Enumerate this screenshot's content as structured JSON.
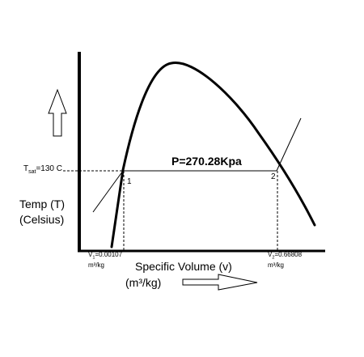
{
  "diagram": {
    "title": "",
    "tsat_prefix": "T",
    "tsat_sub": "sat",
    "tsat_value": "=130 C",
    "pressure_label": "P=270.28Kpa",
    "point1_label": "1",
    "point2_label": "2",
    "y_axis_label_line1": "Temp (T)",
    "y_axis_label_line2": "(Celsius)",
    "v1_prefix": "V",
    "v1_sub": "1",
    "v1_value": "=0.00107",
    "v1_unit": "m³/kg",
    "v2_prefix": "V",
    "v2_sub": "2",
    "v2_value": "=0.66808",
    "v2_unit": "m³/kg",
    "x_axis_label_line1": "Specific Volume (v)",
    "x_axis_label_line2": "(m³/kg)",
    "y_axis_arrow_icon": "up-arrow-icon",
    "x_axis_arrow_icon": "right-arrow-icon"
  }
}
